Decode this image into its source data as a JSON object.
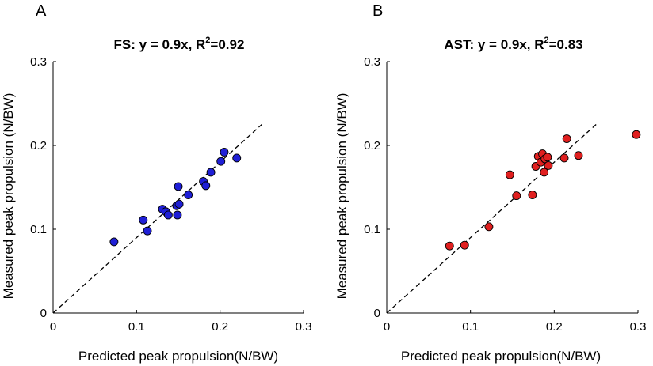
{
  "chart_data": [
    {
      "type": "scatter",
      "panel_label": "A",
      "title_main": "FS: y = 0.9x, R",
      "title_sup": "2",
      "title_tail": "=0.92",
      "xlabel": "Predicted peak propulsion(N/BW)",
      "ylabel": "Measured peak propulsion  (N/BW)",
      "xlim": [
        0,
        0.3
      ],
      "ylim": [
        0,
        0.3
      ],
      "xticks": [
        "0",
        "0.1",
        "0.2",
        "0.3"
      ],
      "yticks": [
        "0",
        "0.1",
        "0.2",
        "0.3"
      ],
      "xtick_values": [
        0,
        0.1,
        0.2,
        0.3
      ],
      "ytick_values": [
        0,
        0.1,
        0.2,
        0.3
      ],
      "fit": {
        "slope": 0.9,
        "x_range": [
          0,
          0.25
        ],
        "style": "dashed"
      },
      "marker_color": "#1f1fd6",
      "points": [
        {
          "x": 0.073,
          "y": 0.085
        },
        {
          "x": 0.108,
          "y": 0.111
        },
        {
          "x": 0.113,
          "y": 0.098
        },
        {
          "x": 0.131,
          "y": 0.124
        },
        {
          "x": 0.135,
          "y": 0.121
        },
        {
          "x": 0.138,
          "y": 0.117
        },
        {
          "x": 0.148,
          "y": 0.128
        },
        {
          "x": 0.149,
          "y": 0.117
        },
        {
          "x": 0.15,
          "y": 0.151
        },
        {
          "x": 0.151,
          "y": 0.13
        },
        {
          "x": 0.162,
          "y": 0.141
        },
        {
          "x": 0.18,
          "y": 0.157
        },
        {
          "x": 0.183,
          "y": 0.152
        },
        {
          "x": 0.189,
          "y": 0.168
        },
        {
          "x": 0.201,
          "y": 0.181
        },
        {
          "x": 0.205,
          "y": 0.192
        },
        {
          "x": 0.22,
          "y": 0.185
        }
      ]
    },
    {
      "type": "scatter",
      "panel_label": "B",
      "title_main": "AST: y = 0.9x, R",
      "title_sup": "2",
      "title_tail": "=0.83",
      "xlabel": "Predicted peak propulsion(N/BW)",
      "ylabel": "Measured peak propulsion  (N/BW)",
      "xlim": [
        0,
        0.3
      ],
      "ylim": [
        0,
        0.3
      ],
      "xticks": [
        "0",
        "0.1",
        "0.2",
        "0.3"
      ],
      "yticks": [
        "0",
        "0.1",
        "0.2",
        "0.3"
      ],
      "xtick_values": [
        0,
        0.1,
        0.2,
        0.3
      ],
      "ytick_values": [
        0,
        0.1,
        0.2,
        0.3
      ],
      "fit": {
        "slope": 0.9,
        "x_range": [
          0,
          0.25
        ],
        "style": "dashed"
      },
      "marker_color": "#e01f1f",
      "points": [
        {
          "x": 0.075,
          "y": 0.08
        },
        {
          "x": 0.093,
          "y": 0.081
        },
        {
          "x": 0.122,
          "y": 0.103
        },
        {
          "x": 0.147,
          "y": 0.165
        },
        {
          "x": 0.155,
          "y": 0.14
        },
        {
          "x": 0.174,
          "y": 0.141
        },
        {
          "x": 0.178,
          "y": 0.175
        },
        {
          "x": 0.181,
          "y": 0.187
        },
        {
          "x": 0.184,
          "y": 0.18
        },
        {
          "x": 0.186,
          "y": 0.19
        },
        {
          "x": 0.188,
          "y": 0.168
        },
        {
          "x": 0.189,
          "y": 0.184
        },
        {
          "x": 0.192,
          "y": 0.186
        },
        {
          "x": 0.193,
          "y": 0.176
        },
        {
          "x": 0.212,
          "y": 0.185
        },
        {
          "x": 0.215,
          "y": 0.208
        },
        {
          "x": 0.229,
          "y": 0.188
        },
        {
          "x": 0.298,
          "y": 0.213
        }
      ]
    }
  ]
}
